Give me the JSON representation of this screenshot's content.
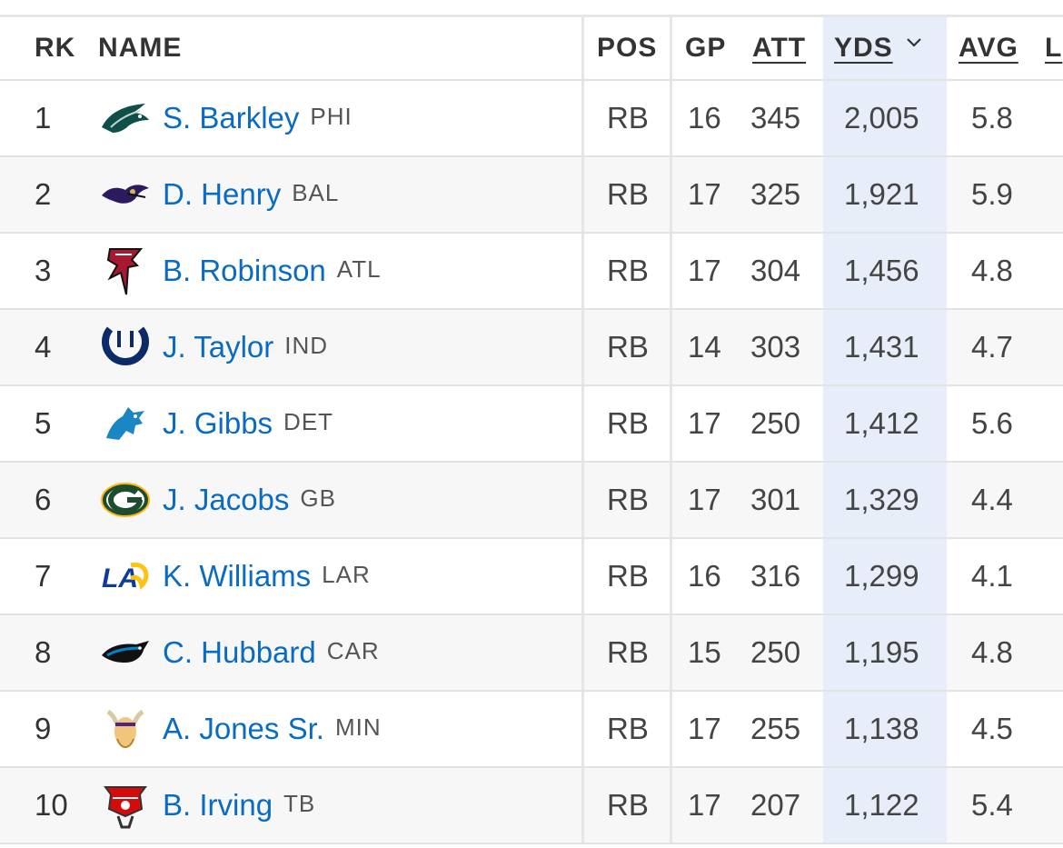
{
  "table": {
    "headers": {
      "rk": "RK",
      "name": "NAME",
      "pos": "POS",
      "gp": "GP",
      "att": "ATT",
      "yds": "YDS",
      "avg": "AVG",
      "extra": "L"
    },
    "sorted_column": "YDS",
    "sort_icon": "chevron-down-icon",
    "rows": [
      {
        "rk": "1",
        "player": "S. Barkley",
        "team": "PHI",
        "logo": "eagles-logo",
        "pos": "RB",
        "gp": "16",
        "att": "345",
        "yds": "2,005",
        "avg": "5.8"
      },
      {
        "rk": "2",
        "player": "D. Henry",
        "team": "BAL",
        "logo": "ravens-logo",
        "pos": "RB",
        "gp": "17",
        "att": "325",
        "yds": "1,921",
        "avg": "5.9"
      },
      {
        "rk": "3",
        "player": "B. Robinson",
        "team": "ATL",
        "logo": "falcons-logo",
        "pos": "RB",
        "gp": "17",
        "att": "304",
        "yds": "1,456",
        "avg": "4.8"
      },
      {
        "rk": "4",
        "player": "J. Taylor",
        "team": "IND",
        "logo": "colts-logo",
        "pos": "RB",
        "gp": "14",
        "att": "303",
        "yds": "1,431",
        "avg": "4.7"
      },
      {
        "rk": "5",
        "player": "J. Gibbs",
        "team": "DET",
        "logo": "lions-logo",
        "pos": "RB",
        "gp": "17",
        "att": "250",
        "yds": "1,412",
        "avg": "5.6"
      },
      {
        "rk": "6",
        "player": "J. Jacobs",
        "team": "GB",
        "logo": "packers-logo",
        "pos": "RB",
        "gp": "17",
        "att": "301",
        "yds": "1,329",
        "avg": "4.4"
      },
      {
        "rk": "7",
        "player": "K. Williams",
        "team": "LAR",
        "logo": "rams-logo",
        "pos": "RB",
        "gp": "16",
        "att": "316",
        "yds": "1,299",
        "avg": "4.1"
      },
      {
        "rk": "8",
        "player": "C. Hubbard",
        "team": "CAR",
        "logo": "panthers-logo",
        "pos": "RB",
        "gp": "15",
        "att": "250",
        "yds": "1,195",
        "avg": "4.8"
      },
      {
        "rk": "9",
        "player": "A. Jones Sr.",
        "team": "MIN",
        "logo": "vikings-logo",
        "pos": "RB",
        "gp": "17",
        "att": "255",
        "yds": "1,138",
        "avg": "4.5"
      },
      {
        "rk": "10",
        "player": "B. Irving",
        "team": "TB",
        "logo": "buccaneers-logo",
        "pos": "RB",
        "gp": "17",
        "att": "207",
        "yds": "1,122",
        "avg": "5.4"
      }
    ]
  },
  "colors": {
    "link_blue": "#0a6bc2",
    "sorted_column_bg": "#e7eef9",
    "zebra_row_bg": "#f7f7f7",
    "divider": "#e3e3e3"
  }
}
